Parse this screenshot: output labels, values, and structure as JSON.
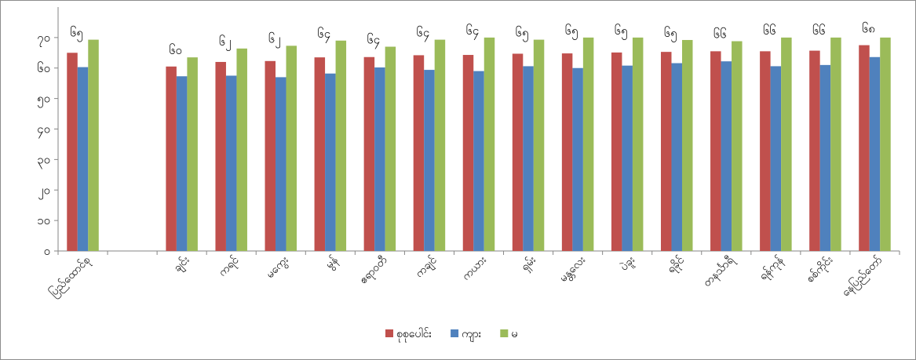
{
  "chart_data": {
    "type": "bar",
    "title": "",
    "xlabel": "",
    "ylabel": "",
    "ylim": [
      0,
      80
    ],
    "yticks": [
      0,
      10,
      20,
      30,
      40,
      50,
      60,
      70
    ],
    "ytick_labels": [
      "၀",
      "၁၀",
      "၂၀",
      "၃၀",
      "၄၀",
      "၅၀",
      "၆၀",
      "၇၀"
    ],
    "grid": false,
    "legend_position": "bottom",
    "categories": [
      "ပြည်ထောင်စု",
      "",
      "ချင်း",
      "ကရင်",
      "မကွေး",
      "မွန်",
      "ဧရာဝတီ",
      "ကချင်",
      "ကယား",
      "ရှမ်း",
      "မန္တလေး",
      "ပဲခူး",
      "ရခိုင်",
      "တနင်္သာရီ",
      "ရန်ကုန်",
      "စစ်ကိုင်း",
      "နေပြည်တော်"
    ],
    "series": [
      {
        "name": "စုစုပေါင်း",
        "color": "#c0504d",
        "values": [
          65,
          null,
          60.5,
          62,
          62.3,
          63.5,
          63.6,
          64.2,
          64.3,
          64.7,
          64.8,
          65.1,
          65.3,
          65.5,
          65.5,
          65.7,
          67.5
        ]
      },
      {
        "name": "ကျား",
        "color": "#4f81bd",
        "values": [
          60.3,
          null,
          57.3,
          57.5,
          57,
          58.2,
          60.2,
          59.4,
          59,
          60.6,
          60,
          60.8,
          61.6,
          62.2,
          60.6,
          61,
          63.6
        ]
      },
      {
        "name": "မ",
        "color": "#9bbb59",
        "values": [
          69.3,
          null,
          63.5,
          66.4,
          67.3,
          69,
          67,
          69.3,
          70,
          69.3,
          70,
          70,
          69.2,
          68.8,
          70,
          70,
          70
        ]
      }
    ],
    "data_labels": [
      "၆၅",
      "",
      "၆၀",
      "၆၂",
      "၆၂",
      "၆၄",
      "၆၄",
      "၆၄",
      "၆၄",
      "၆၅",
      "၆၅",
      "၆၅",
      "၆၅",
      "၆၆",
      "၆၆",
      "၆၆",
      "၆၈"
    ]
  }
}
